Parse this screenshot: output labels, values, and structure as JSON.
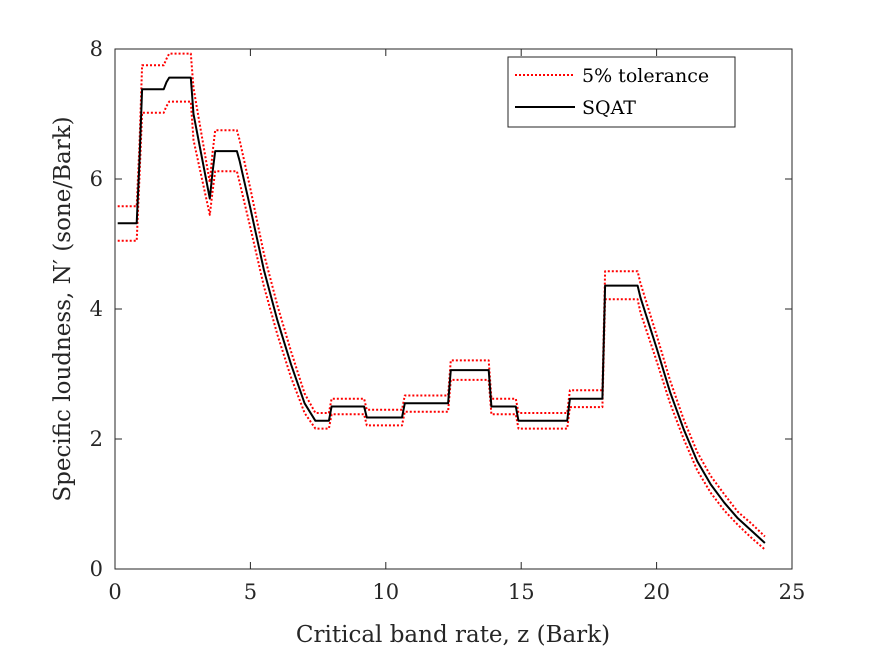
{
  "chart_data": {
    "type": "line",
    "xlabel": "Critical band rate, z (Bark)",
    "ylabel": "Specific loudness, N′ (sone/Bark)",
    "xlim": [
      0,
      25
    ],
    "ylim": [
      0,
      8
    ],
    "xticks": [
      0,
      5,
      10,
      15,
      20,
      25
    ],
    "yticks": [
      0,
      2,
      4,
      6,
      8
    ],
    "grid": false,
    "legend_position": "top-right",
    "series": [
      {
        "name": "5% tolerance",
        "style": "dotted",
        "color": "#ff0000",
        "x": [
          0.1,
          0.8,
          0.9,
          1.0,
          1.8,
          1.9,
          2.0,
          2.8,
          2.9,
          3.5,
          3.6,
          3.7,
          4.5,
          4.6,
          5.0,
          5.5,
          6.0,
          6.5,
          7.0,
          7.4,
          7.5,
          7.9,
          8.0,
          9.2,
          9.3,
          10.6,
          10.7,
          12.3,
          12.4,
          13.8,
          13.9,
          14.8,
          14.9,
          15.3,
          15.4,
          16.7,
          16.8,
          18.0,
          18.1,
          19.3,
          19.4,
          20.0,
          20.5,
          21.0,
          21.5,
          22.0,
          22.5,
          23.0,
          23.5,
          24.0
        ],
        "values": [
          5.58,
          5.58,
          6.5,
          7.75,
          7.75,
          7.85,
          7.93,
          7.93,
          7.4,
          5.95,
          6.4,
          6.75,
          6.75,
          6.6,
          5.85,
          4.85,
          4.05,
          3.35,
          2.7,
          2.4,
          2.4,
          2.4,
          2.62,
          2.62,
          2.45,
          2.45,
          2.67,
          2.67,
          3.21,
          3.21,
          2.62,
          2.62,
          2.4,
          2.4,
          2.4,
          2.4,
          2.75,
          2.75,
          4.58,
          4.58,
          4.4,
          3.6,
          2.9,
          2.3,
          1.8,
          1.43,
          1.15,
          0.88,
          0.7,
          0.5
        ]
      },
      {
        "name": "",
        "style": "dotted",
        "color": "#ff0000",
        "x": [
          0.1,
          0.8,
          0.9,
          1.0,
          1.8,
          1.9,
          2.0,
          2.8,
          2.9,
          3.5,
          3.6,
          3.7,
          4.5,
          4.6,
          5.0,
          5.5,
          6.0,
          6.5,
          7.0,
          7.4,
          7.5,
          7.9,
          8.0,
          9.2,
          9.3,
          10.6,
          10.7,
          12.3,
          12.4,
          13.8,
          13.9,
          14.8,
          14.9,
          15.3,
          15.4,
          16.7,
          16.8,
          18.0,
          18.1,
          19.3,
          19.4,
          20.0,
          20.5,
          21.0,
          21.5,
          22.0,
          22.5,
          23.0,
          23.5,
          24.0
        ],
        "values": [
          5.05,
          5.05,
          6.0,
          7.02,
          7.02,
          7.12,
          7.19,
          7.19,
          6.6,
          5.45,
          5.8,
          6.12,
          6.12,
          5.95,
          5.25,
          4.35,
          3.6,
          2.95,
          2.4,
          2.16,
          2.16,
          2.16,
          2.38,
          2.38,
          2.21,
          2.21,
          2.42,
          2.42,
          2.91,
          2.91,
          2.38,
          2.38,
          2.16,
          2.16,
          2.16,
          2.16,
          2.49,
          2.49,
          4.15,
          4.15,
          3.95,
          3.2,
          2.55,
          2.0,
          1.52,
          1.17,
          0.9,
          0.68,
          0.48,
          0.3
        ]
      },
      {
        "name": "SQAT",
        "style": "solid",
        "color": "#000000",
        "x": [
          0.1,
          0.8,
          0.9,
          1.0,
          1.8,
          1.9,
          2.0,
          2.8,
          2.9,
          3.5,
          3.6,
          3.7,
          4.5,
          4.6,
          5.0,
          5.5,
          6.0,
          6.5,
          7.0,
          7.4,
          7.5,
          7.9,
          8.0,
          9.2,
          9.3,
          10.6,
          10.7,
          12.3,
          12.4,
          13.8,
          13.9,
          14.8,
          14.9,
          15.3,
          15.4,
          16.7,
          16.8,
          18.0,
          18.1,
          19.3,
          19.4,
          20.0,
          20.5,
          21.0,
          21.5,
          22.0,
          22.5,
          23.0,
          23.5,
          24.0
        ],
        "values": [
          5.32,
          5.32,
          6.25,
          7.38,
          7.38,
          7.49,
          7.56,
          7.56,
          7.0,
          5.7,
          6.1,
          6.43,
          6.43,
          6.28,
          5.55,
          4.6,
          3.82,
          3.15,
          2.55,
          2.28,
          2.28,
          2.28,
          2.5,
          2.5,
          2.33,
          2.33,
          2.55,
          2.55,
          3.06,
          3.06,
          2.5,
          2.5,
          2.28,
          2.28,
          2.28,
          2.28,
          2.62,
          2.62,
          4.36,
          4.36,
          4.18,
          3.4,
          2.72,
          2.15,
          1.66,
          1.3,
          1.02,
          0.78,
          0.59,
          0.4
        ]
      }
    ]
  }
}
